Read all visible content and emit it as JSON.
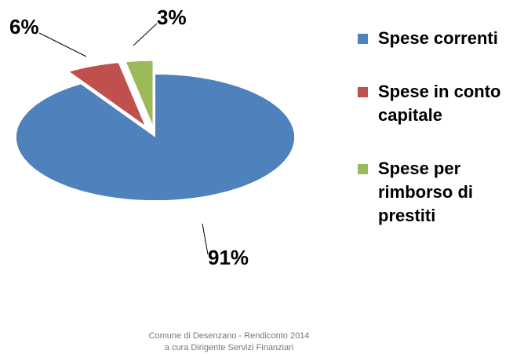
{
  "chart_data": {
    "type": "pie",
    "categories": [
      "Spese correnti",
      "Spese in conto capitale",
      "Spese per rimborso di prestiti"
    ],
    "values": [
      91,
      6,
      3
    ],
    "value_labels": [
      "91%",
      "6%",
      "3%"
    ],
    "colors": [
      "#4f81bd",
      "#c0504d",
      "#9bbb59"
    ],
    "three_d": true,
    "exploded": [
      false,
      true,
      true
    ],
    "legend": "right",
    "footer": [
      "Comune di Desenzano - Rendiconto 2014",
      "a cura Dirigente Servizi Finanziari"
    ]
  }
}
